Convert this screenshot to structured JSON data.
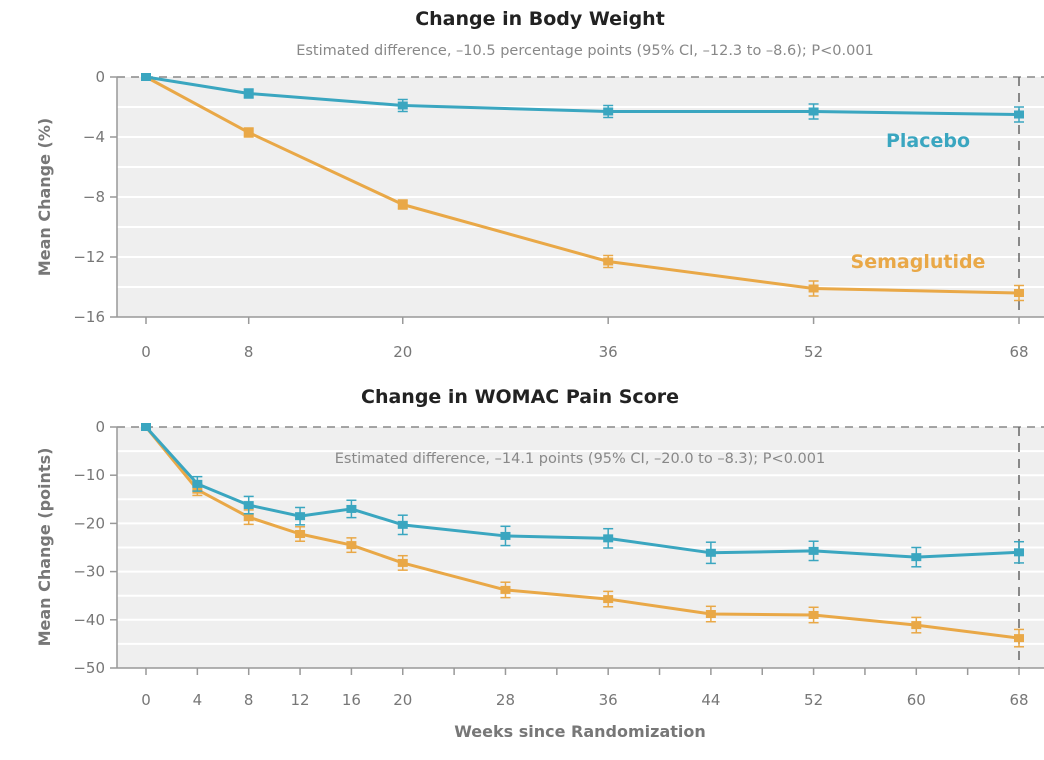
{
  "colors": {
    "placebo": "#3aa6c0",
    "semaglutide": "#e9a847",
    "plot_bg": "#efefef",
    "grid": "#ffffff"
  },
  "chart_data": [
    {
      "type": "line",
      "title": "Change in Body Weight",
      "subtitle": "Estimated difference, –10.5 percentage points (95% CI, –12.3 to –8.6); P<0.001",
      "xlabel": "",
      "ylabel": "Mean Change (%)",
      "xlim": [
        0,
        68
      ],
      "ylim": [
        -16,
        0
      ],
      "xticks": [
        0,
        8,
        20,
        36,
        52,
        68
      ],
      "yticks": [
        0,
        -4,
        -8,
        -12,
        -16
      ],
      "ytick_labels": [
        "0",
        "−4",
        "−8",
        "−12",
        "−16"
      ],
      "grid": true,
      "legend_placement": "inline-right",
      "reference_line_x": 68,
      "series": [
        {
          "name": "Placebo",
          "color_key": "placebo",
          "x": [
            0,
            8,
            20,
            36,
            52,
            68
          ],
          "y": [
            0,
            -1.1,
            -1.9,
            -2.3,
            -2.3,
            -2.5
          ],
          "err": [
            0,
            0.3,
            0.4,
            0.4,
            0.5,
            0.5
          ]
        },
        {
          "name": "Semaglutide",
          "color_key": "semaglutide",
          "x": [
            0,
            8,
            20,
            36,
            52,
            68
          ],
          "y": [
            0,
            -3.7,
            -8.5,
            -12.3,
            -14.1,
            -14.4
          ],
          "err": [
            0,
            0.3,
            0.3,
            0.4,
            0.5,
            0.5
          ]
        }
      ]
    },
    {
      "type": "line",
      "title": "Change in WOMAC Pain Score",
      "subtitle": "Estimated difference, –14.1 points (95% CI, –20.0 to –8.3); P<0.001",
      "xlabel": "Weeks since Randomization",
      "ylabel": "Mean Change (points)",
      "xlim": [
        0,
        68
      ],
      "ylim": [
        -50,
        0
      ],
      "xticks": [
        0,
        4,
        8,
        12,
        16,
        20,
        24,
        28,
        32,
        36,
        40,
        44,
        48,
        52,
        56,
        60,
        64,
        68
      ],
      "xtick_labels_shown": [
        0,
        4,
        8,
        12,
        16,
        20,
        28,
        36,
        44,
        52,
        60,
        68
      ],
      "yticks": [
        0,
        -10,
        -20,
        -30,
        -40,
        -50
      ],
      "ytick_labels": [
        "0",
        "−10",
        "−20",
        "−30",
        "−40",
        "−50"
      ],
      "grid": true,
      "reference_line_x": 68,
      "series": [
        {
          "name": "Placebo",
          "color_key": "placebo",
          "x": [
            0,
            4,
            8,
            12,
            16,
            20,
            28,
            36,
            44,
            52,
            60,
            68
          ],
          "y": [
            0,
            -11.8,
            -16.2,
            -18.5,
            -17.0,
            -20.3,
            -22.6,
            -23.1,
            -26.1,
            -25.7,
            -27.0,
            -26.0
          ],
          "err": [
            0,
            1.5,
            1.8,
            1.8,
            1.8,
            2.0,
            2.0,
            2.0,
            2.2,
            2.0,
            2.0,
            2.2
          ]
        },
        {
          "name": "Semaglutide",
          "color_key": "semaglutide",
          "x": [
            0,
            4,
            8,
            12,
            16,
            20,
            28,
            36,
            44,
            52,
            60,
            68
          ],
          "y": [
            0,
            -13.0,
            -18.7,
            -22.2,
            -24.5,
            -28.2,
            -33.8,
            -35.7,
            -38.8,
            -39.0,
            -41.1,
            -43.8
          ],
          "err": [
            0,
            1.2,
            1.5,
            1.5,
            1.5,
            1.5,
            1.6,
            1.6,
            1.6,
            1.6,
            1.6,
            1.8
          ]
        }
      ]
    }
  ]
}
